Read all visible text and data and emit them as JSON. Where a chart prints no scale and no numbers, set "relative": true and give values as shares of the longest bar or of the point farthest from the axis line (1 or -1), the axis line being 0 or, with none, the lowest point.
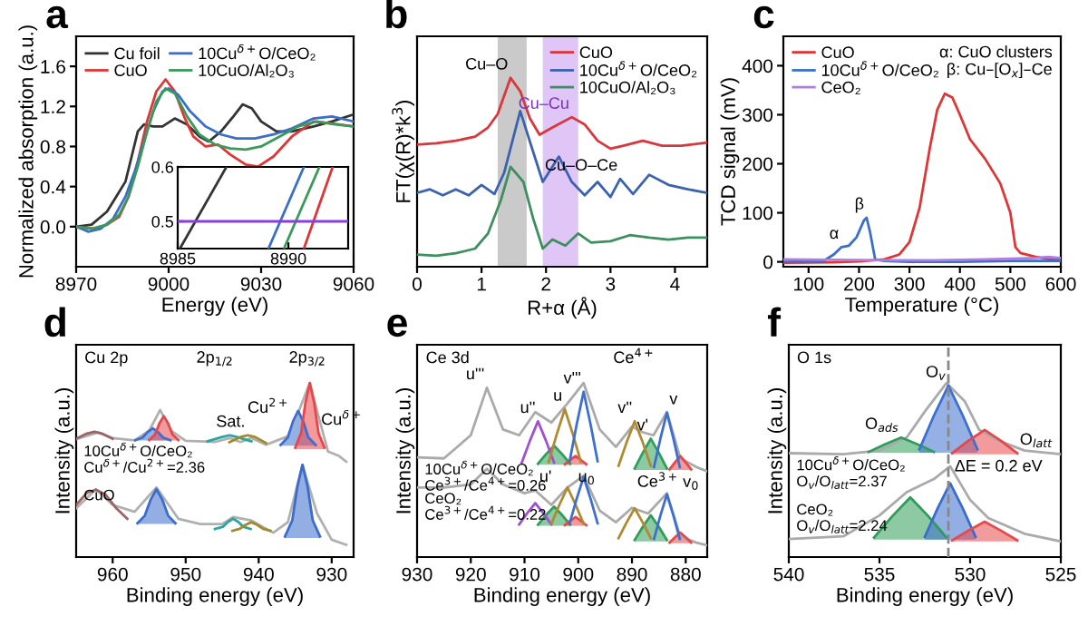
{
  "chart_data": [
    {
      "type": "line",
      "title": "a",
      "xlabel": "Energy (eV)",
      "ylabel": "Normalized absorption (a.u.)",
      "xlim": [
        8970,
        9060
      ],
      "xticks": [
        8970,
        9000,
        9030,
        9060
      ],
      "ylim": [
        -0.4,
        1.9
      ],
      "yticks": [
        {
          "value": 0,
          "label": "0.0"
        },
        0.4,
        0.8,
        1.2,
        1.6
      ],
      "legend": "top left",
      "series": [
        {
          "name": "Cu foil",
          "color": "#333333",
          "x": [
            8970,
            8975,
            8980,
            8983,
            8986,
            8988,
            8990,
            8992,
            8995,
            8998,
            9002,
            9006,
            9010,
            9013,
            9017,
            9021,
            9024,
            9027,
            9030,
            9035,
            9040,
            9047,
            9053,
            9060
          ],
          "values": [
            0.0,
            0.02,
            0.15,
            0.3,
            0.45,
            0.7,
            0.95,
            1.02,
            1.0,
            1.0,
            1.08,
            1.02,
            0.9,
            0.85,
            0.95,
            1.1,
            1.22,
            1.18,
            1.05,
            0.95,
            0.95,
            1.0,
            1.05,
            1.12
          ]
        },
        {
          "name": "CuO",
          "color": "#e03535",
          "x": [
            8970,
            8976,
            8980,
            8984,
            8987,
            8990,
            8993,
            8996,
            8999,
            9002,
            9005,
            9008,
            9012,
            9016,
            9020,
            9025,
            9029,
            9034,
            9040,
            9047,
            9053,
            9060
          ],
          "values": [
            0.0,
            -0.02,
            0.02,
            0.1,
            0.3,
            0.65,
            1.05,
            1.35,
            1.47,
            1.35,
            1.1,
            0.9,
            0.8,
            0.82,
            0.72,
            0.62,
            0.6,
            0.7,
            0.9,
            1.05,
            1.03,
            1.0
          ]
        },
        {
          "name": "10Cu$^{δ+}$O/CeO₂",
          "color": "#3a6ec8",
          "x": [
            8970,
            8974,
            8978,
            8982,
            8986,
            8989,
            8992,
            8995,
            8998,
            9000,
            9003,
            9007,
            9012,
            9017,
            9022,
            9028,
            9034,
            9040,
            9047,
            9053,
            9060
          ],
          "values": [
            0.0,
            -0.05,
            -0.02,
            0.08,
            0.3,
            0.55,
            0.85,
            1.15,
            1.35,
            1.38,
            1.32,
            1.15,
            1.0,
            0.92,
            0.88,
            0.88,
            0.92,
            0.98,
            1.08,
            1.1,
            1.05
          ]
        },
        {
          "name": "10CuO/Al₂O₃",
          "color": "#3a9a5a",
          "x": [
            8970,
            8975,
            8980,
            8984,
            8987,
            8990,
            8993,
            8996,
            8999,
            9002,
            9006,
            9010,
            9015,
            9020,
            9025,
            9030,
            9036,
            9042,
            9048,
            9054,
            9060
          ],
          "values": [
            0.0,
            -0.02,
            0.02,
            0.12,
            0.3,
            0.6,
            0.95,
            1.25,
            1.38,
            1.33,
            1.1,
            0.92,
            0.82,
            0.78,
            0.77,
            0.8,
            0.9,
            1.0,
            1.05,
            1.02,
            1.0
          ]
        }
      ]
    },
    {
      "type": "line",
      "xlim": [
        8985,
        8992.7
      ],
      "xticks": [
        8985,
        8990
      ],
      "ylim": [
        0.45,
        0.6
      ],
      "yticks": [
        0.5,
        0.6
      ],
      "ref_lines": [
        {
          "axis": "y",
          "value": 0.5,
          "color": "#8a3ee0",
          "line_style": "solid"
        }
      ],
      "series": [
        {
          "color": "#333333",
          "x": [
            8985.1,
            8987.2
          ],
          "values": [
            0.45,
            0.6
          ]
        },
        {
          "color": "#3a6ec8",
          "x": [
            8989.1,
            8990.7
          ],
          "values": [
            0.45,
            0.6
          ]
        },
        {
          "color": "#3a9a5a",
          "x": [
            8989.8,
            8991.4
          ],
          "values": [
            0.45,
            0.6
          ]
        },
        {
          "color": "#e03535",
          "x": [
            8990.7,
            8992.0
          ],
          "values": [
            0.45,
            0.6
          ]
        }
      ]
    },
    {
      "type": "line",
      "title": "b",
      "xlabel": "R+α (Å)",
      "ylabel": "FT(χ(R)*k$^{3}$)",
      "relative": true,
      "xlim": [
        0,
        4.5
      ],
      "xticks": [
        0,
        1,
        2,
        3,
        4
      ],
      "legend": "top right",
      "bands": [
        {
          "axis": "x",
          "from": 1.25,
          "to": 1.7,
          "color": "#bdbdbd"
        },
        {
          "axis": "x",
          "from": 1.95,
          "to": 2.5,
          "color": "#d7b8f5"
        }
      ],
      "annotations": [
        {
          "text": "Cu–O",
          "x": 1.45,
          "y": 1.0
        },
        {
          "text": "Cu–Cu",
          "x": 2.4,
          "y": 0.792
        },
        {
          "text": "Cu–O–Ce",
          "x": 3.15,
          "y": 0.465
        }
      ],
      "series": [
        {
          "name": "CuO",
          "color": "#d9363e",
          "x": [
            0,
            0.3,
            0.6,
            0.9,
            1.1,
            1.25,
            1.45,
            1.6,
            1.75,
            1.9,
            2.1,
            2.4,
            2.6,
            2.8,
            3.0,
            3.2,
            3.5,
            3.8,
            4.1,
            4.5
          ],
          "values": [
            0.647,
            0.654,
            0.667,
            0.689,
            0.737,
            0.808,
            1.0,
            0.929,
            0.785,
            0.699,
            0.737,
            0.792,
            0.753,
            0.667,
            0.625,
            0.641,
            0.667,
            0.641,
            0.641,
            0.657
          ]
        },
        {
          "name": "10Cu$^{δ+}$O/CeO₂",
          "color": "#3a62b0",
          "x": [
            0,
            0.2,
            0.4,
            0.6,
            0.8,
            1.0,
            1.2,
            1.35,
            1.6,
            1.8,
            1.95,
            2.2,
            2.4,
            2.6,
            2.8,
            3.0,
            3.15,
            3.35,
            3.6,
            3.9,
            4.2,
            4.5
          ],
          "values": [
            0.391,
            0.41,
            0.378,
            0.41,
            0.378,
            0.433,
            0.385,
            0.497,
            0.824,
            0.609,
            0.449,
            0.583,
            0.449,
            0.378,
            0.449,
            0.369,
            0.465,
            0.385,
            0.487,
            0.433,
            0.41,
            0.391
          ]
        },
        {
          "name": "10CuO/Al₂O₃",
          "color": "#3d8f5f",
          "x": [
            0,
            0.3,
            0.6,
            0.9,
            1.1,
            1.3,
            1.45,
            1.65,
            1.8,
            1.95,
            2.1,
            2.3,
            2.5,
            2.7,
            3.0,
            3.3,
            3.6,
            3.9,
            4.2,
            4.5
          ],
          "values": [
            0.064,
            0.058,
            0.071,
            0.096,
            0.176,
            0.353,
            0.529,
            0.449,
            0.256,
            0.096,
            0.144,
            0.112,
            0.176,
            0.128,
            0.135,
            0.167,
            0.154,
            0.144,
            0.154,
            0.154
          ]
        }
      ]
    },
    {
      "type": "line",
      "title": "c",
      "xlabel": "Temperature (°C)",
      "ylabel": "TCD signal (mV)",
      "xlim": [
        50,
        600
      ],
      "xticks": [
        100,
        200,
        300,
        400,
        500,
        600
      ],
      "ylim": [
        -10,
        460
      ],
      "yticks": [
        0,
        100,
        200,
        300,
        400
      ],
      "legend": "top left",
      "annotations": [
        {
          "text": "α",
          "x": 165,
          "y": 30
        },
        {
          "text": "β",
          "x": 215,
          "y": 90
        },
        "α: CuO clusters",
        "β: Cu–[O$_{x}$]–Ce"
      ],
      "series": [
        {
          "name": "CuO",
          "color": "#e03535",
          "x": [
            50,
            150,
            200,
            250,
            280,
            300,
            320,
            340,
            355,
            370,
            385,
            400,
            420,
            450,
            480,
            500,
            510,
            520,
            550,
            580,
            600
          ],
          "values": [
            -2,
            -1,
            1,
            5,
            15,
            40,
            110,
            230,
            310,
            343,
            335,
            300,
            250,
            210,
            160,
            100,
            30,
            18,
            10,
            5,
            5
          ]
        },
        {
          "name": "10Cu$^{δ+}$O/CeO₂",
          "color": "#3a6ec8",
          "x": [
            50,
            130,
            150,
            165,
            180,
            195,
            210,
            215,
            222,
            232,
            250,
            300,
            400,
            500,
            600
          ],
          "values": [
            0,
            2,
            15,
            30,
            33,
            50,
            85,
            90,
            60,
            5,
            2,
            0,
            0,
            2,
            2
          ]
        },
        {
          "name": "CeO₂",
          "color": "#b07de0",
          "x": [
            50,
            150,
            250,
            350,
            450,
            550,
            575,
            600
          ],
          "values": [
            5,
            4,
            3,
            3,
            5,
            8,
            10,
            8
          ]
        }
      ]
    },
    {
      "type": "line",
      "title": "d",
      "xlabel": "Binding energy (eV)",
      "ylabel": "Intensity (a.u.)",
      "relative": true,
      "xlim": [
        965,
        927
      ],
      "xticks": [
        960,
        950,
        940,
        930
      ],
      "annotations": [
        "Cu 2p",
        "2p$_{1/2}$",
        "2p$_{3/2}$",
        {
          "text": "Sat.",
          "x": 941.5,
          "y": 0.7
        },
        {
          "text": "Cu$^{2+}$",
          "x": 935.3,
          "y": 0.78
        },
        {
          "text": "Cu$^{δ+}$",
          "x": 931.8,
          "y": 0.711
        }
      ],
      "series": [
        {
          "name": "10Cu$^{δ+}$O/CeO₂\nCu$^{δ+}$/Cu$^{2+}$=2.36",
          "color": "#b0b0b0",
          "x": [
            965,
            962,
            960,
            957,
            955,
            953.5,
            952,
            950,
            946,
            944,
            942.5,
            941,
            939,
            936,
            934.5,
            933,
            932,
            930.5,
            929,
            928
          ],
          "values": [
            0.677,
            0.716,
            0.684,
            0.671,
            0.726,
            0.845,
            0.726,
            0.668,
            0.661,
            0.684,
            0.661,
            0.684,
            0.645,
            0.694,
            0.839,
            1.0,
            0.839,
            0.606,
            0.581,
            0.548
          ]
        },
        {
          "name": "CuO",
          "color": "#b0b0b0",
          "x": [
            965,
            962.3,
            960,
            957,
            954,
            951,
            948,
            945,
            943.5,
            941,
            938,
            936,
            934,
            932,
            930,
            928
          ],
          "values": [
            0.28,
            0.39,
            0.3,
            0.26,
            0.4,
            0.22,
            0.19,
            0.19,
            0.23,
            0.21,
            0.14,
            0.2,
            0.53,
            0.25,
            0.1,
            0.07
          ]
        },
        {
          "color": "#3c6fd0",
          "x": [
            937,
            936.0,
            935.3,
            934.6,
            933.9,
            933.2,
            932.2
          ],
          "lower": [
            0.64,
            0.64,
            0.64,
            0.64,
            0.64,
            0.64,
            0.64
          ],
          "upper": [
            0.644,
            0.688,
            0.78,
            0.84,
            0.78,
            0.688,
            0.644
          ],
          "values": [
            0.644,
            0.688,
            0.78,
            0.84,
            0.78,
            0.688,
            0.644
          ]
        },
        {
          "color": "#e8474a",
          "x": [
            935,
            934.2,
            933.6,
            933,
            932.4,
            931.8,
            931
          ],
          "lower": [
            0.62,
            0.62,
            0.62,
            0.62,
            0.62,
            0.62,
            0.62
          ],
          "upper": [
            0.628,
            0.711,
            0.886,
            1.0,
            0.886,
            0.711,
            0.628
          ],
          "values": [
            0.628,
            0.711,
            0.886,
            1.0,
            0.886,
            0.711,
            0.628
          ]
        },
        {
          "color": "#3c6fd0",
          "x": [
            956.9,
            955.9,
            955.2,
            954.5,
            953.8,
            953.1,
            952.1
          ],
          "lower": [
            0.67,
            0.67,
            0.67,
            0.67,
            0.67,
            0.67,
            0.67
          ],
          "upper": [
            0.671,
            0.687,
            0.719,
            0.74,
            0.719,
            0.687,
            0.671
          ],
          "values": [
            0.671,
            0.687,
            0.719,
            0.74,
            0.719,
            0.687,
            0.671
          ]
        },
        {
          "color": "#e8474a",
          "x": [
            955,
            954.2,
            953.6,
            953,
            952.4,
            951.8,
            951
          ],
          "lower": [
            0.67,
            0.67,
            0.67,
            0.67,
            0.67,
            0.67,
            0.67
          ],
          "upper": [
            0.673,
            0.704,
            0.768,
            0.81,
            0.768,
            0.704,
            0.673
          ],
          "values": [
            0.673,
            0.704,
            0.768,
            0.81,
            0.768,
            0.704,
            0.673
          ]
        },
        {
          "color": "#2aa6a0",
          "x": [
            947,
            945,
            944,
            943,
            941
          ],
          "values": [
            0.665,
            0.69,
            0.7,
            0.69,
            0.665
          ]
        },
        {
          "color": "#a08a30",
          "x": [
            944,
            942.5,
            941.5,
            940.5,
            939
          ],
          "values": [
            0.66,
            0.69,
            0.7,
            0.69,
            0.655
          ]
        },
        {
          "color": "#9a6565",
          "x": [
            965,
            963.5,
            962.5,
            961.5,
            960
          ],
          "values": [
            0.68,
            0.71,
            0.72,
            0.71,
            0.68
          ]
        },
        {
          "color": "#9a6565",
          "x": [
            965,
            963.5,
            962.3,
            961,
            959.5,
            958
          ],
          "values": [
            0.3,
            0.37,
            0.387,
            0.36,
            0.28,
            0.22
          ]
        },
        {
          "color": "#3b6ccc",
          "x": [
            956.6,
            955.6,
            954.8,
            954,
            953.2,
            952.4,
            951.4
          ],
          "lower": [
            0.19,
            0.19,
            0.19,
            0.19,
            0.19,
            0.19,
            0.19
          ],
          "upper": [
            0.194,
            0.238,
            0.33,
            0.39,
            0.33,
            0.238,
            0.194
          ],
          "values": [
            0.194,
            0.238,
            0.33,
            0.39,
            0.33,
            0.238,
            0.194
          ]
        },
        {
          "color": "#2aa6a0",
          "x": [
            946,
            944.9,
            944.2,
            943.5,
            942.8,
            942.1,
            941.1
          ],
          "values": [
            0.161,
            0.174,
            0.202,
            0.22,
            0.202,
            0.174,
            0.161
          ]
        },
        {
          "color": "#a08a30",
          "x": [
            943.6,
            942.6,
            941.8,
            941,
            940.2,
            939.4,
            938.4
          ],
          "values": [
            0.151,
            0.162,
            0.185,
            0.2,
            0.185,
            0.162,
            0.151
          ]
        },
        {
          "color": "#3b6ccc",
          "x": [
            936.4,
            935.4,
            934.7,
            934,
            933.3,
            932.6,
            931.6
          ],
          "lower": [
            0.11,
            0.11,
            0.11,
            0.11,
            0.11,
            0.11,
            0.11
          ],
          "upper": [
            0.118,
            0.211,
            0.404,
            0.53,
            0.404,
            0.211,
            0.118
          ],
          "values": [
            0.118,
            0.211,
            0.404,
            0.53,
            0.404,
            0.211,
            0.118
          ]
        }
      ]
    },
    {
      "type": "line",
      "title": "e",
      "xlabel": "Binding energy (eV)",
      "ylabel": "Intensity (a.u.)",
      "relative": true,
      "xlim": [
        930,
        876
      ],
      "xticks": [
        930,
        920,
        910,
        900,
        890,
        880
      ],
      "annotations": [
        "Ce 3d",
        "Ce$^{4+}$",
        {
          "text": "u'''",
          "x": 917,
          "y": 0.973
        },
        {
          "text": "u''",
          "x": 907.5,
          "y": 0.78
        },
        {
          "text": "u",
          "x": 902.5,
          "y": 0.85
        },
        {
          "text": "v'''",
          "x": 899,
          "y": 0.95
        },
        {
          "text": "v''",
          "x": 889.5,
          "y": 0.78
        },
        {
          "text": "v'",
          "x": 886.5,
          "y": 0.68
        },
        {
          "text": "v",
          "x": 883.5,
          "y": 0.83
        },
        {
          "text": "u'",
          "x": 904.5,
          "y": 0.53
        },
        {
          "text": "u$_{0}$",
          "x": 900.5,
          "y": 0.53
        },
        {
          "text": "Ce$^{3+}$",
          "x": 889.5,
          "y": 0.5
        },
        {
          "text": "v$_{0}$",
          "x": 881,
          "y": 0.5
        }
      ],
      "series": [
        {
          "name": "10Cu$^{δ+}$O/CeO₂\nCe$^{3+}$/Ce$^{4+}$=0.26",
          "color": "#aaaaaa",
          "x": [
            930,
            925,
            920,
            917,
            914,
            911,
            908,
            905,
            902,
            899,
            896,
            893,
            890,
            888,
            886,
            883.5,
            881,
            878,
            876
          ],
          "values": [
            0.573,
            0.567,
            0.7,
            0.973,
            0.733,
            0.7,
            0.833,
            0.773,
            0.883,
            1.0,
            0.733,
            0.633,
            0.75,
            0.717,
            0.7,
            0.833,
            0.567,
            0.517,
            0.493
          ]
        },
        {
          "name": "CeO₂\nCe$^{3+}$/Ce$^{4+}$=0.22",
          "color": "#aaaaaa",
          "x": [
            930,
            925,
            920,
            917,
            914,
            910,
            908,
            905,
            902,
            899,
            896,
            893,
            890,
            887,
            883.5,
            881,
            878,
            876
          ],
          "values": [
            0.4,
            0.4,
            0.417,
            0.507,
            0.417,
            0.367,
            0.383,
            0.3,
            0.4,
            0.467,
            0.267,
            0.2,
            0.283,
            0.25,
            0.367,
            0.117,
            0.083,
            0.067
          ]
        },
        {
          "color": "#2e9e5a",
          "x": [
            907.5,
            906,
            904.5,
            903,
            901.5
          ],
          "lower": [
            0.53,
            0.53,
            0.53,
            0.53,
            0.53
          ],
          "upper": [
            0.536,
            0.591,
            0.64,
            0.591,
            0.536
          ],
          "values": [
            0.536,
            0.591,
            0.64,
            0.591,
            0.536
          ]
        },
        {
          "color": "#e8474a",
          "x": [
            902.5,
            901.5,
            900.5,
            899.5,
            898.5
          ],
          "lower": [
            0.53,
            0.53,
            0.53,
            0.53,
            0.53
          ],
          "upper": [
            0.533,
            0.558,
            0.58,
            0.558,
            0.533
          ],
          "values": [
            0.533,
            0.558,
            0.58,
            0.558,
            0.533
          ]
        },
        {
          "color": "#2e9e5a",
          "x": [
            889.5,
            888,
            886.5,
            885,
            883.5
          ],
          "lower": [
            0.5,
            0.5,
            0.5,
            0.5,
            0.5
          ],
          "upper": [
            0.509,
            0.599,
            0.68,
            0.599,
            0.509
          ],
          "values": [
            0.509,
            0.599,
            0.68,
            0.599,
            0.509
          ]
        },
        {
          "color": "#e8474a",
          "x": [
            883,
            882,
            881,
            880,
            879
          ],
          "lower": [
            0.5,
            0.5,
            0.5,
            0.5,
            0.5
          ],
          "upper": [
            0.504,
            0.544,
            0.58,
            0.544,
            0.504
          ],
          "values": [
            0.504,
            0.544,
            0.58,
            0.544,
            0.504
          ]
        },
        {
          "color": "#a050d0",
          "x": [
            910.5,
            909,
            907.5,
            906,
            904.5
          ],
          "values": [
            0.543,
            0.668,
            0.78,
            0.668,
            0.543
          ]
        },
        {
          "color": "#b08a30",
          "x": [
            905.5,
            904,
            902.5,
            901,
            899.5
          ],
          "values": [
            0.546,
            0.706,
            0.85,
            0.706,
            0.546
          ]
        },
        {
          "color": "#3c6fd0",
          "x": [
            901.6,
            900.3,
            899,
            897.7,
            896.4
          ],
          "values": [
            0.551,
            0.761,
            0.95,
            0.761,
            0.551
          ]
        },
        {
          "color": "#b08a30",
          "x": [
            892.5,
            891,
            889.5,
            888,
            886.5
          ],
          "values": [
            0.524,
            0.659,
            0.78,
            0.659,
            0.524
          ]
        },
        {
          "color": "#3c6fd0",
          "x": [
            885.9,
            884.7,
            883.5,
            882.3,
            881.1
          ],
          "values": [
            0.517,
            0.682,
            0.83,
            0.682,
            0.517
          ]
        },
        {
          "color": "#2f9c58",
          "x": [
            907.5,
            906,
            904.5,
            903,
            901.5
          ],
          "lower": [
            0.18,
            0.18,
            0.18,
            0.18,
            0.18
          ],
          "upper": [
            0.186,
            0.241,
            0.29,
            0.241,
            0.186
          ],
          "values": [
            0.186,
            0.241,
            0.29,
            0.241,
            0.186
          ]
        },
        {
          "color": "#e6494c",
          "x": [
            902.5,
            901.5,
            900.5,
            899.5,
            898.5
          ],
          "lower": [
            0.18,
            0.18,
            0.18,
            0.18,
            0.18
          ],
          "upper": [
            0.183,
            0.208,
            0.23,
            0.208,
            0.183
          ],
          "values": [
            0.183,
            0.208,
            0.23,
            0.208,
            0.183
          ]
        },
        {
          "color": "#2f9c58",
          "x": [
            889.5,
            888,
            886.5,
            885,
            883.5
          ],
          "lower": [
            0.09,
            0.09,
            0.09,
            0.09,
            0.09
          ],
          "upper": [
            0.098,
            0.173,
            0.24,
            0.173,
            0.098
          ],
          "values": [
            0.098,
            0.173,
            0.24,
            0.173,
            0.098
          ]
        },
        {
          "color": "#e6494c",
          "x": [
            883,
            882,
            881,
            880,
            879
          ],
          "lower": [
            0.08,
            0.08,
            0.08,
            0.08,
            0.08
          ],
          "upper": [
            0.083,
            0.113,
            0.14,
            0.113,
            0.083
          ],
          "values": [
            0.083,
            0.113,
            0.14,
            0.113,
            0.083
          ]
        },
        {
          "color": "#a050d0",
          "x": [
            911,
            909.5,
            908,
            906.5,
            905
          ],
          "values": [
            0.187,
            0.252,
            0.31,
            0.252,
            0.187
          ]
        },
        {
          "color": "#b08a30",
          "x": [
            905,
            903.5,
            902,
            900.5,
            899
          ],
          "values": [
            0.191,
            0.301,
            0.4,
            0.301,
            0.191
          ]
        },
        {
          "color": "#3c6fd0",
          "x": [
            901.6,
            900.3,
            899,
            897.7,
            896.4
          ],
          "values": [
            0.194,
            0.334,
            0.46,
            0.334,
            0.194
          ]
        },
        {
          "color": "#b08a30",
          "x": [
            892.5,
            891,
            889.5,
            888,
            886.5
          ],
          "values": [
            0.109,
            0.199,
            0.28,
            0.199,
            0.109
          ]
        },
        {
          "color": "#3c6fd0",
          "x": [
            885.9,
            884.7,
            883.5,
            882.3,
            881.1
          ],
          "values": [
            0.104,
            0.239,
            0.36,
            0.239,
            0.104
          ]
        }
      ]
    },
    {
      "type": "line",
      "title": "f",
      "xlabel": "Binding energy (eV)",
      "ylabel": "Intensity (a.u.)",
      "relative": true,
      "xlim": [
        540,
        525
      ],
      "xticks": [
        540,
        535,
        530,
        525
      ],
      "ref_lines": [
        {
          "axis": "x",
          "value": 531.2,
          "color": "#888888",
          "line_style": "dashed"
        }
      ],
      "annotations": [
        "O 1s",
        {
          "text": "O$_{v}$",
          "x": 531.2,
          "y": 0.985
        },
        {
          "text": "O$_{ads}$",
          "x": 533.8,
          "y": 0.687
        },
        {
          "text": "O$_{latt}$",
          "x": 527.4,
          "y": 0.597
        },
        {
          "text": "ΔE = 0.2 eV",
          "x": 531.0,
          "y": 0.59
        }
      ],
      "series": [
        {
          "name": "10Cu$^{δ+}$O/CeO₂\nO$_{v}$/O$_{latt}$=2.37",
          "color": "#aaaaaa",
          "x": [
            540,
            537,
            535,
            533.5,
            532.5,
            531.3,
            530.3,
            529.5,
            528.5,
            527,
            525
          ],
          "values": [
            0.597,
            0.591,
            0.612,
            0.687,
            0.836,
            1.0,
            0.896,
            0.731,
            0.672,
            0.612,
            0.591
          ]
        },
        {
          "name": "CeO₂\nO$_{v}$/O$_{latt}$=2.24",
          "color": "#aaaaaa",
          "x": [
            540,
            537,
            535,
            533.5,
            532,
            531.1,
            530,
            529,
            527,
            525
          ],
          "values": [
            0.104,
            0.119,
            0.239,
            0.373,
            0.448,
            0.522,
            0.328,
            0.224,
            0.134,
            0.09
          ]
        },
        {
          "color": "#2e9e5a",
          "x": [
            535.6,
            534.7,
            533.8,
            532.9,
            532.0
          ],
          "lower": [
            0.6,
            0.6,
            0.6,
            0.6,
            0.6
          ],
          "upper": [
            0.604,
            0.648,
            0.687,
            0.648,
            0.604
          ],
          "values": [
            0.604,
            0.648,
            0.687,
            0.648,
            0.604
          ]
        },
        {
          "color": "#3c6fd0",
          "x": [
            532.8,
            532.0,
            531.2,
            530.4,
            529.6
          ],
          "lower": [
            0.6,
            0.6,
            0.6,
            0.6,
            0.6
          ],
          "upper": [
            0.619,
            0.812,
            0.985,
            0.812,
            0.619
          ],
          "values": [
            0.619,
            0.812,
            0.985,
            0.812,
            0.619
          ]
        },
        {
          "color": "#e8474a",
          "x": [
            531.0,
            530.1,
            529.2,
            528.3,
            527.4
          ],
          "lower": [
            0.59,
            0.59,
            0.59,
            0.59,
            0.59
          ],
          "upper": [
            0.597,
            0.668,
            0.731,
            0.668,
            0.597
          ],
          "values": [
            0.597,
            0.668,
            0.731,
            0.668,
            0.597
          ]
        },
        {
          "color": "#2f9c58",
          "x": [
            535.3,
            534.3,
            533.3,
            532.3,
            531.3
          ],
          "lower": [
            0.1,
            0.1,
            0.1,
            0.1,
            0.1
          ],
          "upper": [
            0.112,
            0.234,
            0.343,
            0.234,
            0.112
          ],
          "values": [
            0.112,
            0.234,
            0.343,
            0.234,
            0.112
          ]
        },
        {
          "color": "#3b6ccc",
          "x": [
            532.5,
            531.8,
            531.1,
            530.4,
            529.7
          ],
          "lower": [
            0.1,
            0.1,
            0.1,
            0.1,
            0.1
          ],
          "upper": [
            0.116,
            0.278,
            0.424,
            0.278,
            0.116
          ],
          "values": [
            0.116,
            0.278,
            0.424,
            0.278,
            0.116
          ]
        },
        {
          "color": "#e6494c",
          "x": [
            531.0,
            530.1,
            529.2,
            528.3,
            527.4
          ],
          "lower": [
            0.09,
            0.09,
            0.09,
            0.09,
            0.09
          ],
          "upper": [
            0.096,
            0.152,
            0.203,
            0.152,
            0.096
          ],
          "values": [
            0.096,
            0.152,
            0.203,
            0.152,
            0.096
          ]
        }
      ]
    }
  ]
}
